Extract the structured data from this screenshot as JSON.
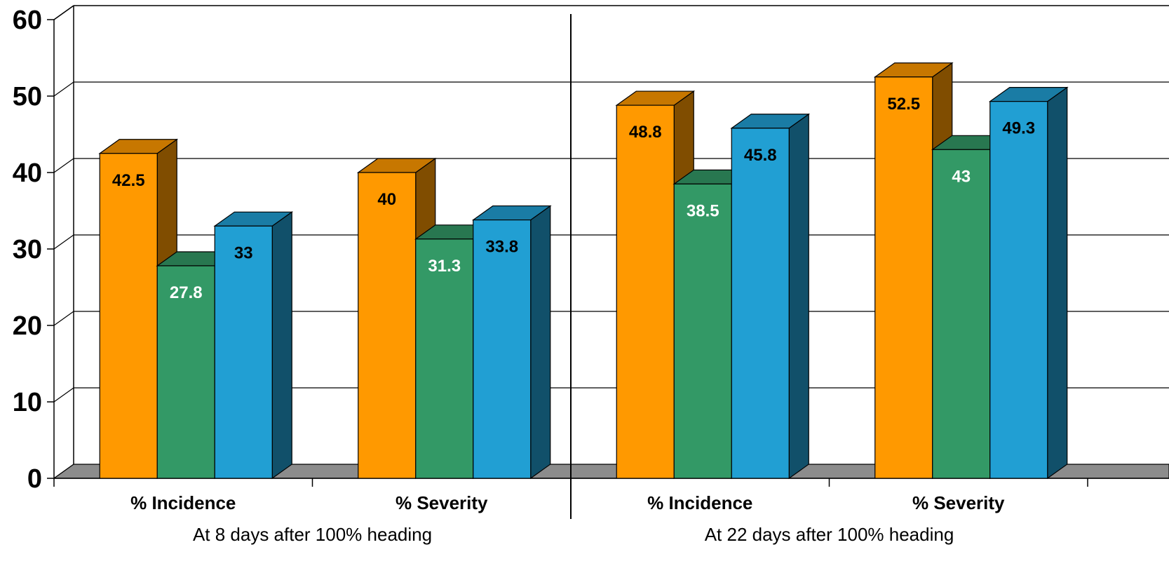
{
  "chart_data": {
    "type": "bar",
    "title": "",
    "xlabel": "",
    "ylabel": "",
    "ylim": [
      0,
      60
    ],
    "yticks": [
      0,
      10,
      20,
      30,
      40,
      50,
      60
    ],
    "grid": true,
    "legend": "none",
    "groups": [
      {
        "label": "At 8 days after 100% heading",
        "categories": [
          "% Incidence",
          "% Severity"
        ]
      },
      {
        "label": "At 22 days after 100% heading",
        "categories": [
          "% Incidence",
          "% Severity"
        ]
      }
    ],
    "categories": [
      "% Incidence",
      "% Severity",
      "% Incidence",
      "% Severity"
    ],
    "series": [
      {
        "values": [
          42.5,
          40,
          48.8,
          52.5
        ],
        "color": "#FF9900",
        "label_color": "#000000"
      },
      {
        "values": [
          27.8,
          31.3,
          38.5,
          43
        ],
        "color": "#339966",
        "label_color": "#FFFFFF"
      },
      {
        "values": [
          33,
          33.8,
          45.8,
          49.3
        ],
        "color": "#219FD3",
        "label_color": "#000000"
      }
    ]
  }
}
